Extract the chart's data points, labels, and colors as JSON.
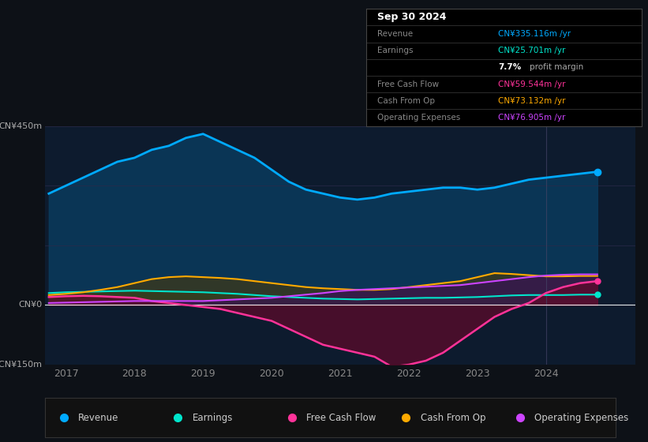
{
  "background_color": "#0d1117",
  "plot_bg_color": "#0d1b2e",
  "ylim": [
    -150,
    450
  ],
  "xlim": [
    2016.7,
    2025.3
  ],
  "yticks": [
    -150,
    0,
    150,
    300,
    450
  ],
  "ytick_labels": [
    "-CN¥150m",
    "CN¥0",
    "",
    "",
    "CN¥450m"
  ],
  "xticks": [
    2017,
    2018,
    2019,
    2020,
    2021,
    2022,
    2023,
    2024
  ],
  "colors": {
    "revenue": "#00aaff",
    "earnings": "#00e5cc",
    "free_cash_flow": "#ff3399",
    "cash_from_op": "#ffaa00",
    "operating_expenses": "#cc44ff"
  },
  "fill_colors": {
    "revenue": "#0a3a5c",
    "earnings": "#1a4a3a",
    "free_cash_flow": "#5c0a2a",
    "cash_from_op": "#4a3a0a",
    "operating_expenses": "#3a0a5c"
  },
  "years": [
    2016.75,
    2017.0,
    2017.25,
    2017.5,
    2017.75,
    2018.0,
    2018.25,
    2018.5,
    2018.75,
    2019.0,
    2019.25,
    2019.5,
    2019.75,
    2020.0,
    2020.25,
    2020.5,
    2020.75,
    2021.0,
    2021.25,
    2021.5,
    2021.75,
    2022.0,
    2022.25,
    2022.5,
    2022.75,
    2023.0,
    2023.25,
    2023.5,
    2023.75,
    2024.0,
    2024.25,
    2024.5,
    2024.75
  ],
  "revenue": [
    280,
    300,
    320,
    340,
    360,
    370,
    390,
    400,
    420,
    430,
    410,
    390,
    370,
    340,
    310,
    290,
    280,
    270,
    265,
    270,
    280,
    285,
    290,
    295,
    295,
    290,
    295,
    305,
    315,
    320,
    325,
    330,
    335
  ],
  "earnings": [
    30,
    32,
    33,
    34,
    35,
    36,
    35,
    34,
    33,
    32,
    30,
    28,
    25,
    22,
    20,
    18,
    16,
    15,
    14,
    15,
    16,
    17,
    18,
    18,
    19,
    20,
    22,
    24,
    25,
    25,
    25,
    26,
    26
  ],
  "free_cash_flow": [
    20,
    22,
    23,
    22,
    20,
    18,
    10,
    5,
    0,
    -5,
    -10,
    -20,
    -30,
    -40,
    -60,
    -80,
    -100,
    -110,
    -120,
    -130,
    -155,
    -150,
    -140,
    -120,
    -90,
    -60,
    -30,
    -10,
    5,
    30,
    45,
    55,
    60
  ],
  "cash_from_op": [
    25,
    28,
    32,
    38,
    45,
    55,
    65,
    70,
    72,
    70,
    68,
    65,
    60,
    55,
    50,
    45,
    42,
    40,
    38,
    38,
    40,
    45,
    50,
    55,
    60,
    70,
    80,
    78,
    75,
    72,
    72,
    73,
    73
  ],
  "operating_expenses": [
    5,
    6,
    7,
    8,
    9,
    10,
    10,
    10,
    10,
    10,
    12,
    14,
    16,
    18,
    22,
    26,
    30,
    35,
    38,
    40,
    42,
    44,
    46,
    48,
    50,
    55,
    60,
    65,
    70,
    74,
    76,
    77,
    77
  ],
  "info_box": {
    "title": "Sep 30 2024",
    "rows": [
      {
        "label": "Revenue",
        "value": "CN¥335.116m /yr",
        "color": "#00aaff"
      },
      {
        "label": "Earnings",
        "value": "CN¥25.701m /yr",
        "color": "#00e5cc"
      },
      {
        "label": "",
        "value": "7.7% profit margin",
        "color": "#ffffff",
        "bold_part": "7.7%"
      },
      {
        "label": "Free Cash Flow",
        "value": "CN¥59.544m /yr",
        "color": "#ff3399"
      },
      {
        "label": "Cash From Op",
        "value": "CN¥73.132m /yr",
        "color": "#ffaa00"
      },
      {
        "label": "Operating Expenses",
        "value": "CN¥76.905m /yr",
        "color": "#cc44ff"
      }
    ]
  },
  "legend": [
    {
      "label": "Revenue",
      "color": "#00aaff"
    },
    {
      "label": "Earnings",
      "color": "#00e5cc"
    },
    {
      "label": "Free Cash Flow",
      "color": "#ff3399"
    },
    {
      "label": "Cash From Op",
      "color": "#ffaa00"
    },
    {
      "label": "Operating Expenses",
      "color": "#cc44ff"
    }
  ]
}
